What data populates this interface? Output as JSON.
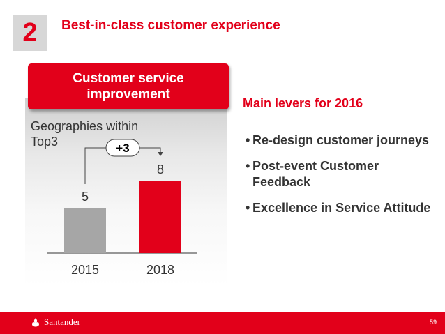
{
  "slide": {
    "number": "2",
    "title": "Best-in-class customer experience"
  },
  "panel": {
    "header_line1": "Customer service",
    "header_line2": "improvement"
  },
  "chart_data": {
    "type": "bar",
    "ylabel_line1": "Geographies within",
    "ylabel_line2": "Top3",
    "categories": [
      "2015",
      "2018"
    ],
    "values": [
      5,
      8
    ],
    "data_labels": [
      "5",
      "8"
    ],
    "colors": [
      "#a6a6a6",
      "#e2001a"
    ],
    "annotation": "+3",
    "ylim": [
      0,
      10
    ],
    "grid": false
  },
  "levers": {
    "title": "Main levers for 2016",
    "items": [
      "Re-design customer journeys",
      "Post-event Customer Feedback",
      "Excellence in Service Attitude"
    ]
  },
  "footer": {
    "brand": "Santander",
    "page_number": "59",
    "brand_color": "#e2001a"
  }
}
